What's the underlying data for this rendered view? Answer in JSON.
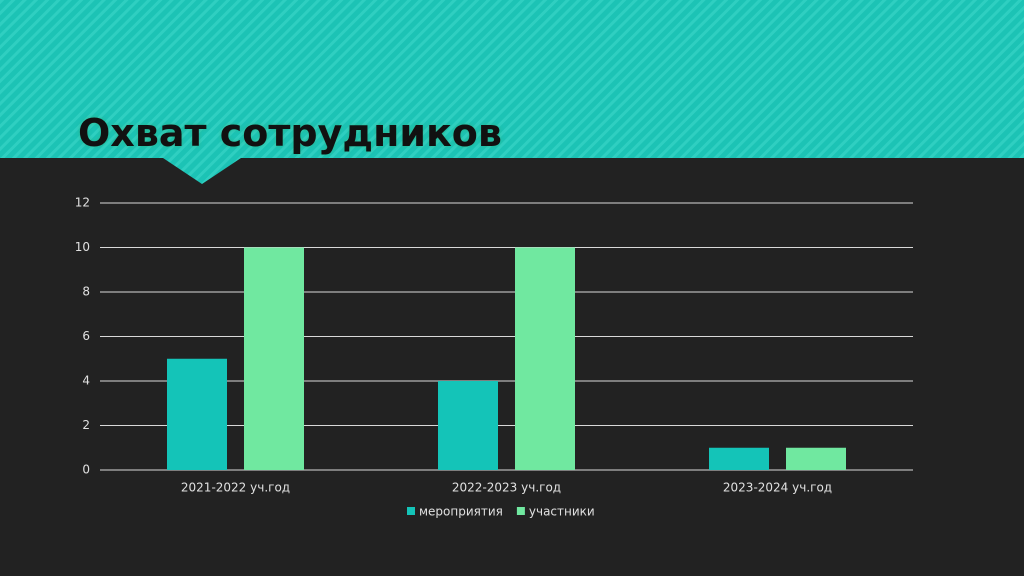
{
  "chart_data": {
    "type": "bar",
    "title": "Охват сотрудников",
    "categories": [
      "2021-2022 уч.год",
      "2022-2023 уч.год",
      "2023-2024 уч.год"
    ],
    "series": [
      {
        "name": "мероприятия",
        "color": "#14c4b8",
        "values": [
          5,
          4,
          1
        ]
      },
      {
        "name": "участники",
        "color": "#70e8a0",
        "values": [
          10,
          10,
          1
        ]
      }
    ],
    "ylim": [
      0,
      12
    ],
    "yticks": [
      0,
      2,
      4,
      6,
      8,
      10,
      12
    ],
    "grid": true,
    "legend": "bottom"
  }
}
